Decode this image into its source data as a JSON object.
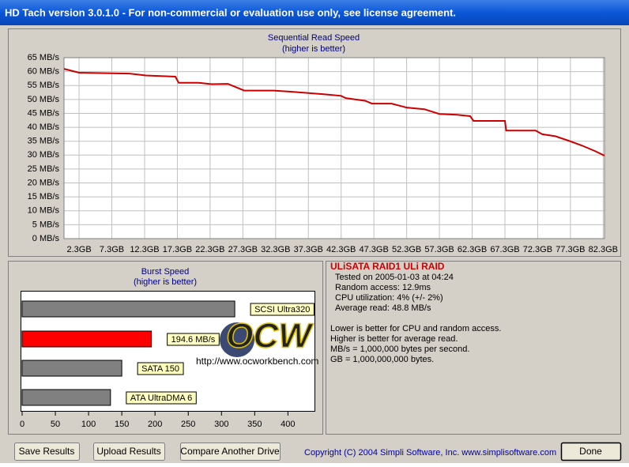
{
  "window": {
    "title": "HD Tach version 3.0.1.0  - For non-commercial or evaluation use only, see license agreement."
  },
  "chart_data": [
    {
      "type": "line",
      "title": "Sequential Read Speed",
      "subtitle": "(higher is better)",
      "x": [
        0,
        2.3,
        10,
        12.5,
        17,
        17.5,
        20.5,
        22.5,
        25,
        27.5,
        32,
        35,
        40,
        42.3,
        43,
        46,
        47,
        50,
        52.3,
        55,
        57.3,
        60,
        62,
        62.5,
        67.3,
        67.5,
        72,
        73,
        75,
        77,
        79,
        81,
        82.5
      ],
      "values": [
        61,
        59.6,
        59.3,
        58.6,
        58.2,
        56,
        56,
        55.5,
        55.6,
        53.2,
        53.2,
        52.7,
        51.8,
        51.3,
        50.5,
        49.5,
        48.5,
        48.5,
        47.1,
        46.5,
        44.8,
        44.5,
        44,
        42.3,
        42.3,
        38.8,
        38.8,
        37.5,
        36.8,
        35.2,
        33.5,
        31.5,
        29.8
      ],
      "color": "#cc0000",
      "grid": true,
      "xlim": [
        0,
        82.5
      ],
      "xticks": [
        {
          "value": 2.3,
          "label": "2.3GB"
        },
        {
          "value": 7.3,
          "label": "7.3GB"
        },
        {
          "value": 12.3,
          "label": "12.3GB"
        },
        {
          "value": 17.3,
          "label": "17.3GB"
        },
        {
          "value": 22.3,
          "label": "22.3GB"
        },
        {
          "value": 27.3,
          "label": "27.3GB"
        },
        {
          "value": 32.3,
          "label": "32.3GB"
        },
        {
          "value": 37.3,
          "label": "37.3GB"
        },
        {
          "value": 42.3,
          "label": "42.3GB"
        },
        {
          "value": 47.3,
          "label": "47.3GB"
        },
        {
          "value": 52.3,
          "label": "52.3GB"
        },
        {
          "value": 57.3,
          "label": "57.3GB"
        },
        {
          "value": 62.3,
          "label": "62.3GB"
        },
        {
          "value": 67.3,
          "label": "67.3GB"
        },
        {
          "value": 72.3,
          "label": "72.3GB"
        },
        {
          "value": 77.3,
          "label": "77.3GB"
        },
        {
          "value": 82.3,
          "label": "82.3GB"
        }
      ],
      "ylim": [
        0,
        65
      ],
      "yticks": [
        {
          "value": 0,
          "label": "0 MB/s"
        },
        {
          "value": 5,
          "label": "5 MB/s"
        },
        {
          "value": 10,
          "label": "10 MB/s"
        },
        {
          "value": 15,
          "label": "15 MB/s"
        },
        {
          "value": 20,
          "label": "20 MB/s"
        },
        {
          "value": 25,
          "label": "25 MB/s"
        },
        {
          "value": 30,
          "label": "30 MB/s"
        },
        {
          "value": 35,
          "label": "35 MB/s"
        },
        {
          "value": 40,
          "label": "40 MB/s"
        },
        {
          "value": 45,
          "label": "45 MB/s"
        },
        {
          "value": 50,
          "label": "50 MB/s"
        },
        {
          "value": 55,
          "label": "55 MB/s"
        },
        {
          "value": 60,
          "label": "60 MB/s"
        },
        {
          "value": 65,
          "label": "65 MB/s"
        }
      ]
    },
    {
      "type": "barh",
      "title": "Burst Speed",
      "subtitle": "(higher is better)",
      "categories": [
        "SCSI Ultra320",
        null,
        "SATA 150",
        "ATA UltraDMA 6"
      ],
      "values": [
        320,
        194.6,
        150,
        133
      ],
      "value_labels": [
        null,
        "194.6 MB/s",
        null,
        null
      ],
      "colors": [
        "#808080",
        "#ff0000",
        "#808080",
        "#808080"
      ],
      "grid": false,
      "xlim": [
        0,
        440
      ],
      "xticks": [
        0,
        50,
        100,
        150,
        200,
        250,
        300,
        350,
        400
      ]
    }
  ],
  "info": {
    "heading": "ULiSATA RAID1 ULi RAID",
    "lines": [
      "Tested on 2005-01-03 at 04:24",
      "Random access: 12.9ms",
      "CPU utilization: 4% (+/- 2%)",
      "Average read: 48.8 MB/s"
    ],
    "notes": [
      "Lower is better for CPU and random access.",
      "Higher is better for average read.",
      "MB/s = 1,000,000 bytes per second.",
      "GB = 1,000,000,000 bytes."
    ]
  },
  "watermark": {
    "logo": "OCW",
    "url": "http://www.ocworkbench.com"
  },
  "buttons": [
    "Save Results",
    "Upload Results",
    "Compare Another Drive",
    "Done"
  ],
  "copyright": "Copyright (C) 2004 Simpli Software, Inc. www.simplisoftware.com"
}
